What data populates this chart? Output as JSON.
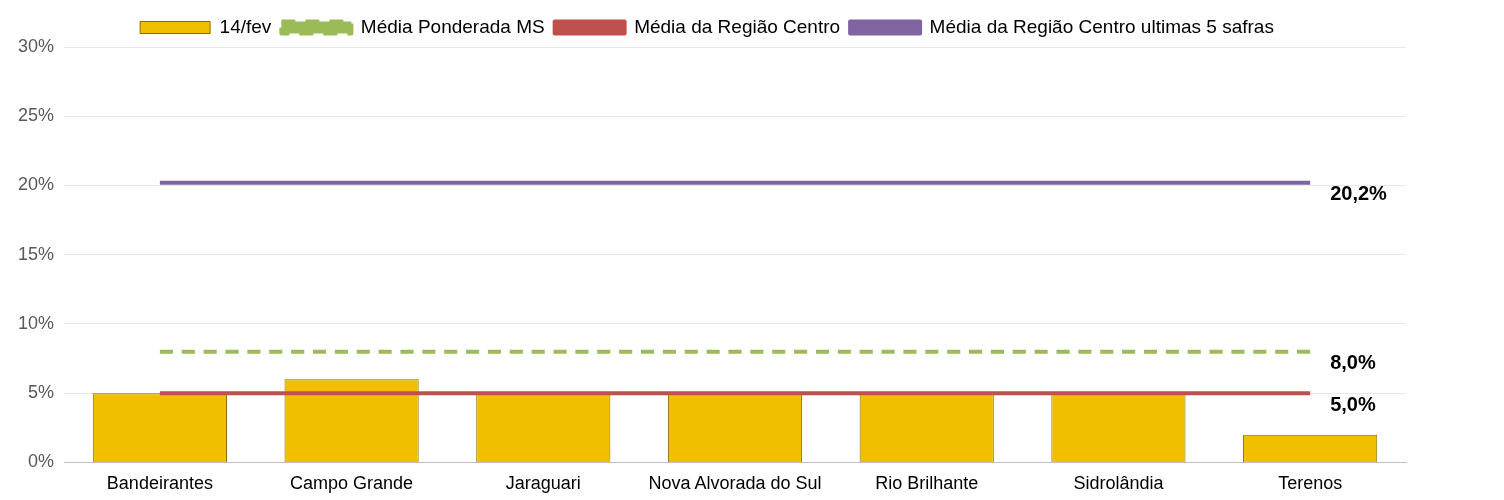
{
  "chart_data": {
    "type": "bar",
    "categories": [
      "Bandeirantes",
      "Campo Grande",
      "Jaraguari",
      "Nova Alvorada do Sul",
      "Rio Brilhante",
      "Sidrolândia",
      "Terenos"
    ],
    "series": [
      {
        "name": "14/fev",
        "color": "#f0c000",
        "values": [
          5.0,
          6.0,
          5.0,
          5.0,
          5.0,
          5.0,
          2.0
        ]
      },
      {
        "name": "Média Ponderada MS",
        "type": "line",
        "color": "#9bbb59",
        "line_style": "dashed",
        "values": [
          8.0,
          8.0,
          8.0,
          8.0,
          8.0,
          8.0,
          8.0
        ],
        "value_labels": [
          null,
          null,
          null,
          null,
          null,
          null,
          "8,0%"
        ]
      },
      {
        "name": "Média da Região Centro",
        "type": "line",
        "color": "#c0504d",
        "line_style": "solid",
        "values": [
          5.0,
          5.0,
          5.0,
          5.0,
          5.0,
          5.0,
          5.0
        ],
        "value_labels": [
          null,
          null,
          null,
          null,
          null,
          null,
          "5,0%"
        ]
      },
      {
        "name": "Média da Região Centro ultimas 5 safras",
        "type": "line",
        "color": "#8064a2",
        "line_style": "solid",
        "values": [
          20.2,
          20.2,
          20.2,
          20.2,
          20.2,
          20.2,
          20.2
        ],
        "value_labels": [
          null,
          null,
          null,
          null,
          null,
          null,
          "20,2%"
        ]
      }
    ],
    "ylim": [
      0,
      30
    ],
    "yticks": [
      {
        "value": 0,
        "label": "0%"
      },
      {
        "value": 5,
        "label": "5%"
      },
      {
        "value": 10,
        "label": "10%"
      },
      {
        "value": 15,
        "label": "15%"
      },
      {
        "value": 20,
        "label": "20%"
      },
      {
        "value": 25,
        "label": "25%"
      },
      {
        "value": 30,
        "label": "30%"
      }
    ],
    "grid": "y",
    "legend": "top",
    "marker": "none"
  }
}
